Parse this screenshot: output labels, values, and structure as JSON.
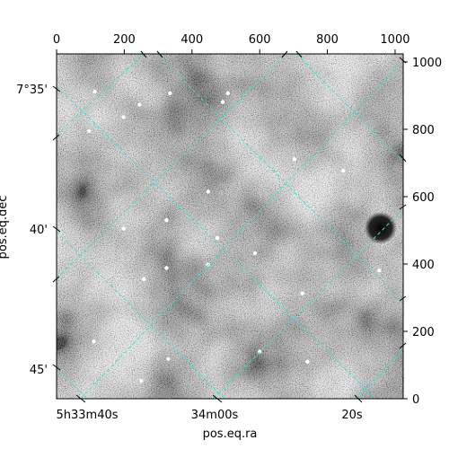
{
  "chart_data": {
    "type": "image",
    "pixel_axes": {
      "x_range": [
        0,
        1024
      ],
      "y_range": [
        0,
        1024
      ],
      "x_ticks": [
        0,
        200,
        400,
        600,
        800,
        1000
      ],
      "y_ticks": [
        0,
        200,
        400,
        600,
        800,
        1000
      ]
    },
    "world_axes": {
      "xlabel": "pos.eq.ra",
      "ylabel": "pos.eq.dec",
      "ra_tick_labels": [
        "5h33m40s",
        "34m00s",
        "20s"
      ],
      "dec_tick_labels": [
        "7°35'",
        "40'",
        "45'"
      ]
    },
    "grid": true,
    "grid_color": "#40e0d0",
    "colormap": "gray",
    "sources": [
      {
        "x": 113,
        "y": 912
      },
      {
        "x": 198,
        "y": 836
      },
      {
        "x": 96,
        "y": 795
      },
      {
        "x": 245,
        "y": 873
      },
      {
        "x": 335,
        "y": 907
      },
      {
        "x": 491,
        "y": 881
      },
      {
        "x": 506,
        "y": 907
      },
      {
        "x": 703,
        "y": 711
      },
      {
        "x": 847,
        "y": 677
      },
      {
        "x": 448,
        "y": 615
      },
      {
        "x": 325,
        "y": 530
      },
      {
        "x": 198,
        "y": 505
      },
      {
        "x": 475,
        "y": 477
      },
      {
        "x": 586,
        "y": 432
      },
      {
        "x": 447,
        "y": 398
      },
      {
        "x": 325,
        "y": 388
      },
      {
        "x": 258,
        "y": 355
      },
      {
        "x": 953,
        "y": 381
      },
      {
        "x": 726,
        "y": 313
      },
      {
        "x": 110,
        "y": 170
      },
      {
        "x": 741,
        "y": 110
      },
      {
        "x": 250,
        "y": 53
      },
      {
        "x": 330,
        "y": 118
      },
      {
        "x": 600,
        "y": 140
      }
    ],
    "dark_blob": {
      "x": 957,
      "y": 507
    }
  }
}
